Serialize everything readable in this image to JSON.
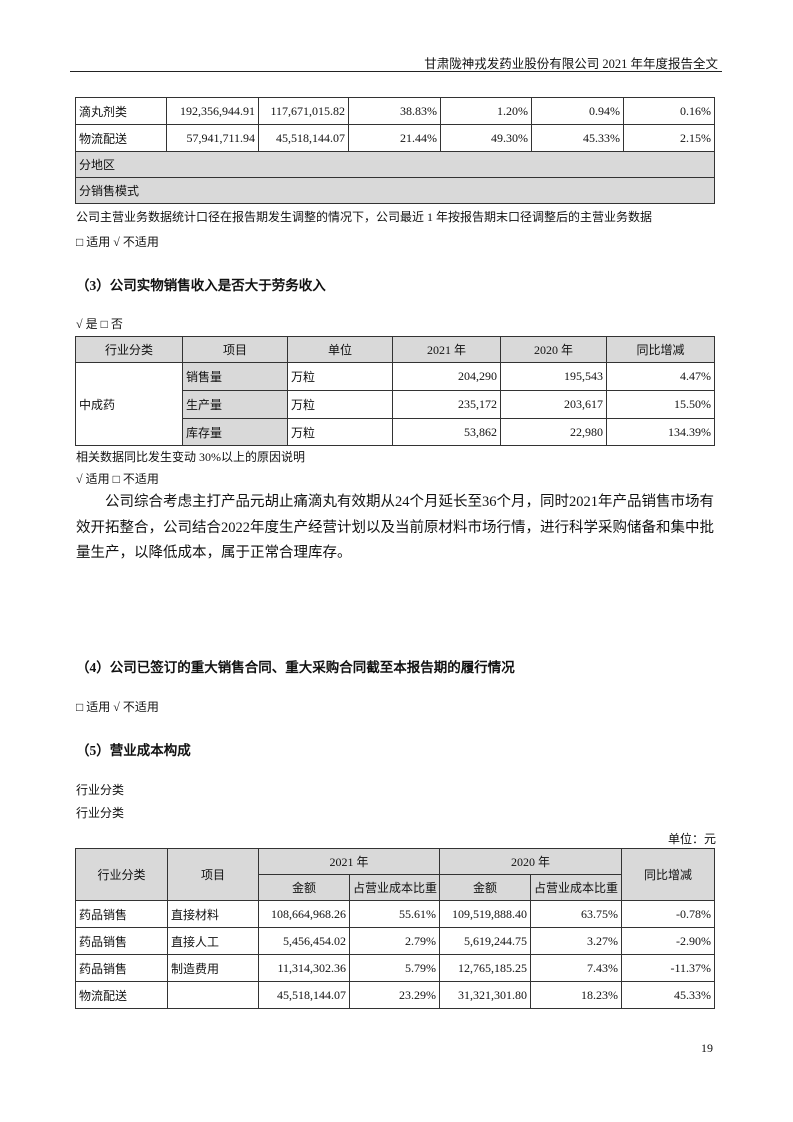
{
  "header": {
    "title": "甘肃陇神戎发药业股份有限公司 2021 年年度报告全文"
  },
  "table1": {
    "rows": [
      [
        "滴丸剂类",
        "192,356,944.91",
        "117,671,015.82",
        "38.83%",
        "1.20%",
        "0.94%",
        "0.16%"
      ],
      [
        "物流配送",
        "57,941,711.94",
        "45,518,144.07",
        "21.44%",
        "49.30%",
        "45.33%",
        "2.15%"
      ]
    ],
    "section_rows": [
      "分地区",
      "分销售模式"
    ]
  },
  "note1": "公司主营业务数据统计口径在报告期发生调整的情况下，公司最近 1 年按报告期末口径调整后的主营业务数据",
  "applicable1": "□ 适用 √ 不适用",
  "section3": {
    "heading": "（3）公司实物销售收入是否大于劳务收入",
    "answer": "√ 是 □ 否",
    "table": {
      "headers": [
        "行业分类",
        "项目",
        "单位",
        "2021 年",
        "2020 年",
        "同比增减"
      ],
      "category": "中成药",
      "rows": [
        [
          "销售量",
          "万粒",
          "204,290",
          "195,543",
          "4.47%"
        ],
        [
          "生产量",
          "万粒",
          "235,172",
          "203,617",
          "15.50%"
        ],
        [
          "库存量",
          "万粒",
          "53,862",
          "22,980",
          "134.39%"
        ]
      ]
    },
    "reason_label": "相关数据同比发生变动 30%以上的原因说明",
    "applicable": "√ 适用 □ 不适用",
    "paragraph": "公司综合考虑主打产品元胡止痛滴丸有效期从24个月延长至36个月，同时2021年产品销售市场有效开拓整合，公司结合2022年度生产经营计划以及当前原材料市场行情，进行科学采购储备和集中批量生产，以降低成本，属于正常合理库存。"
  },
  "section4": {
    "heading": "（4）公司已签订的重大销售合同、重大采购合同截至本报告期的履行情况",
    "applicable": "□ 适用 √ 不适用"
  },
  "section5": {
    "heading": "（5）营业成本构成",
    "label1": "行业分类",
    "label2": "行业分类",
    "unit": "单位：元",
    "table": {
      "headers": {
        "industry": "行业分类",
        "item": "项目",
        "y2021": "2021 年",
        "y2020": "2020 年",
        "yoy": "同比增减",
        "amount": "金额",
        "ratio": "占营业成本比重"
      },
      "rows": [
        [
          "药品销售",
          "直接材料",
          "108,664,968.26",
          "55.61%",
          "109,519,888.40",
          "63.75%",
          "-0.78%"
        ],
        [
          "药品销售",
          "直接人工",
          "5,456,454.02",
          "2.79%",
          "5,619,244.75",
          "3.27%",
          "-2.90%"
        ],
        [
          "药品销售",
          "制造费用",
          "11,314,302.36",
          "5.79%",
          "12,765,185.25",
          "7.43%",
          "-11.37%"
        ],
        [
          "物流配送",
          "",
          "45,518,144.07",
          "23.29%",
          "31,321,301.80",
          "18.23%",
          "45.33%"
        ]
      ]
    }
  },
  "page_number": "19"
}
